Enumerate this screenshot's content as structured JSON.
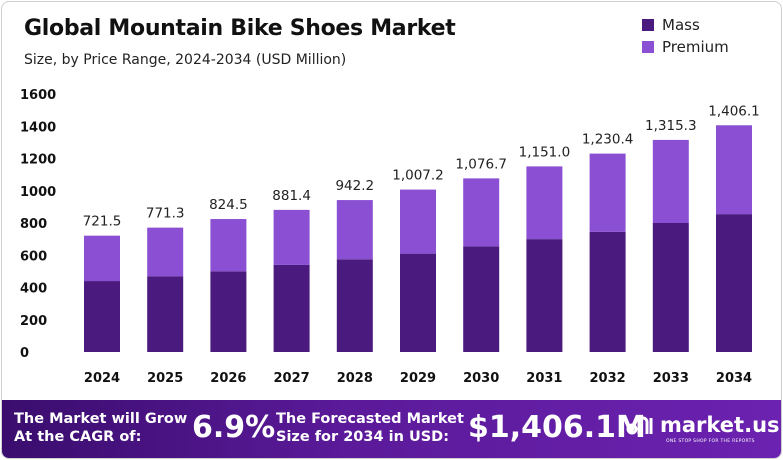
{
  "header": {
    "title": "Global Mountain Bike Shoes Market",
    "subtitle": "Size, by Price Range, 2024-2034 (USD Million)"
  },
  "legend": [
    {
      "label": "Mass",
      "color": "#4a1a7e"
    },
    {
      "label": "Premium",
      "color": "#8a4fd3"
    }
  ],
  "chart_data": {
    "type": "bar",
    "stacked": true,
    "categories": [
      "2024",
      "2025",
      "2026",
      "2027",
      "2028",
      "2029",
      "2030",
      "2031",
      "2032",
      "2033",
      "2034"
    ],
    "series": [
      {
        "name": "Mass",
        "values": [
          440,
          470,
          500,
          540,
          575,
          610,
          655,
          700,
          745,
          800,
          855
        ],
        "color": "#4a1a7e"
      },
      {
        "name": "Premium",
        "values": [
          281.5,
          301.3,
          324.5,
          341.4,
          367.2,
          397.2,
          421.7,
          451.0,
          485.4,
          515.3,
          551.1
        ],
        "color": "#8a4fd3"
      }
    ],
    "totals": [
      "721.5",
      "771.3",
      "824.5",
      "881.4",
      "942.2",
      "1,007.2",
      "1,076.7",
      "1,151.0",
      "1,230.4",
      "1,315.3",
      "1,406.1"
    ],
    "y_ticks": [
      "1600",
      "1400",
      "1200",
      "1000",
      "800",
      "600",
      "400",
      "200",
      "0"
    ],
    "ylim": [
      0,
      1600
    ],
    "title": "Global Mountain Bike Shoes Market",
    "xlabel": "",
    "ylabel": ""
  },
  "footer": {
    "grow_label": "The Market will Grow\nAt the CAGR of:",
    "cagr": "6.9%",
    "forecast_label": "The Forecasted Market\nSize for 2034 in USD:",
    "forecast_value": "$1,406.1M",
    "logo_text": "market.us",
    "logo_tagline": "ONE STOP SHOP FOR THE REPORTS"
  }
}
